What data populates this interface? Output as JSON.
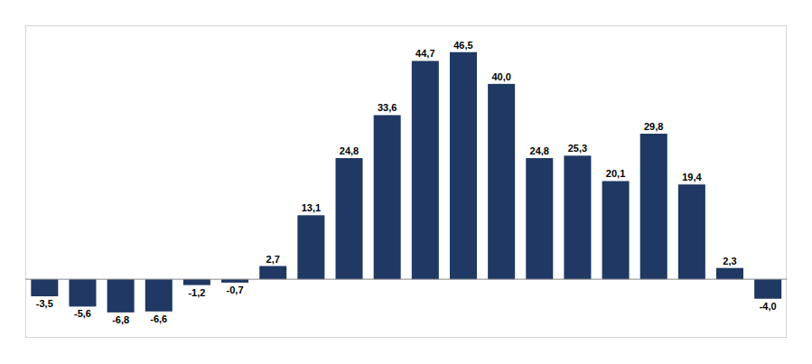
{
  "chart_data": {
    "type": "bar",
    "categories": [
      null,
      null,
      null,
      null,
      null,
      null,
      null,
      null,
      null,
      null,
      null,
      null,
      null,
      null,
      null,
      null,
      null,
      null,
      null,
      null
    ],
    "values": [
      -3.5,
      -5.6,
      -6.8,
      -6.6,
      -1.2,
      -0.7,
      2.7,
      13.1,
      24.8,
      33.6,
      44.7,
      46.5,
      40.0,
      24.8,
      25.3,
      20.1,
      29.8,
      19.4,
      2.3,
      -4.0
    ],
    "value_labels": [
      "-3,5",
      "-5,6",
      "-6,8",
      "-6,6",
      "-1,2",
      "-0,7",
      "2,7",
      "13,1",
      "24,8",
      "33,6",
      "44,7",
      "46,5",
      "40,0",
      "24,8",
      "25,3",
      "20,1",
      "29,8",
      "19,4",
      "2,3",
      "-4,0"
    ],
    "color": "#1f3864",
    "ylim": [
      -12,
      52
    ],
    "data_labels": true,
    "tick_labels": false
  }
}
